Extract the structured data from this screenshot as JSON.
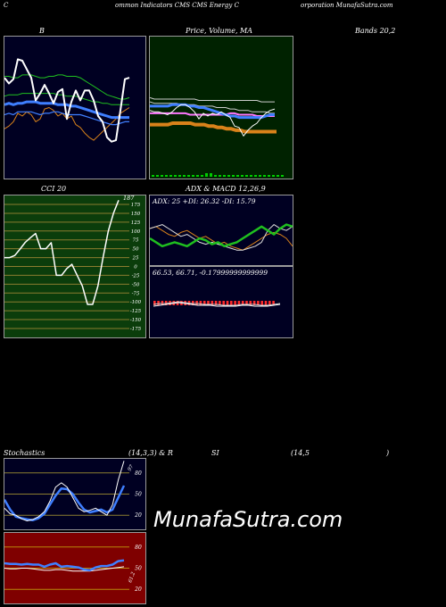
{
  "header": {
    "c": "C",
    "mid": "ommon  Indicators CMS CMS Energy C",
    "right": "orporation  MunafaSutra.com"
  },
  "panels": {
    "bollinger": {
      "label_left": "B",
      "label_mid": "Price,  Volume,  MA",
      "label_right": "Bands 20,2"
    },
    "cci": {
      "label": "CCI 20",
      "value_label": "187",
      "ticks": [
        "175",
        "150",
        "125",
        "100",
        "75",
        "50",
        "25",
        "0",
        "-25",
        "-50",
        "-75",
        "-100",
        "-125",
        "-150",
        "-175"
      ]
    },
    "adx": {
      "title": "ADX  & MACD 12,26,9",
      "readout": "ADX: 25 +DI: 26.32 -DI: 15.79"
    },
    "macd": {
      "readout": "66.53,  66.71,  -0.17999999999999"
    },
    "stochastics": {
      "label_left": "Stochastics",
      "label_mid": "(14,3,3) & R",
      "label_si": "SI",
      "label_right": "(14,5",
      "paren": ")",
      "ticks": [
        "80",
        "50",
        "20"
      ],
      "value_label": "97"
    },
    "rsi": {
      "ticks": [
        "80",
        "50",
        "20"
      ],
      "value_label": "61.2"
    }
  },
  "watermark": "MunafaSutra.com",
  "colors": {
    "price": "#ffffff",
    "ma_blue": "#3f7fff",
    "ma_green": "#1fbf1f",
    "ma_orange": "#d9821a",
    "pink": "#ff77ff",
    "cci_bg": "#0b3d0b",
    "rsi_bg": "#7f0000"
  },
  "chart_data": [
    {
      "type": "line",
      "name": "bollinger",
      "series": [
        {
          "values": [
            35,
            37,
            40,
            46,
            44,
            47,
            45,
            40,
            42,
            49,
            50,
            48,
            44,
            46,
            42,
            44,
            38,
            36,
            32,
            29,
            27,
            30,
            33,
            36,
            39,
            42,
            46,
            48,
            50
          ]
        },
        {
          "values": [
            58,
            59,
            59,
            59,
            60,
            60,
            60,
            60,
            60,
            60,
            60,
            60,
            59,
            59,
            58,
            58,
            58,
            57,
            56,
            55,
            54,
            54,
            53,
            53,
            52,
            52,
            52,
            52,
            52
          ]
        },
        {
          "values": [
            72,
            72,
            71,
            71,
            73,
            73,
            73,
            72,
            71,
            71,
            72,
            72,
            73,
            73,
            72,
            72,
            72,
            71,
            69,
            67,
            65,
            63,
            61,
            59,
            58,
            57,
            56,
            56,
            57
          ]
        },
        {
          "values": [
            45,
            46,
            45,
            47,
            47,
            47,
            47,
            46,
            45,
            46,
            46,
            47,
            47,
            46,
            45,
            45,
            45,
            45,
            44,
            43,
            42,
            41,
            40,
            39,
            38,
            38,
            39,
            40,
            40
          ]
        },
        {
          "values": [
            52,
            53,
            52,
            53,
            53,
            54,
            54,
            54,
            53,
            53,
            53,
            53,
            52,
            52,
            52,
            51,
            51,
            50,
            49,
            48,
            47,
            46,
            45,
            44,
            43,
            43,
            43,
            43,
            43
          ]
        },
        {
          "values": [
            71,
            67,
            70,
            84,
            83,
            77,
            71,
            55,
            60,
            66,
            60,
            53,
            61,
            63,
            42,
            54,
            62,
            55,
            62,
            62,
            55,
            44,
            40,
            29,
            26,
            27,
            48,
            70,
            71
          ]
        }
      ]
    },
    {
      "type": "line",
      "name": "price-volume",
      "series": [
        {
          "values": [
            48,
            47,
            47,
            46,
            45,
            47,
            50,
            52,
            52,
            50,
            47,
            42,
            46,
            44,
            46,
            45,
            47,
            45,
            43,
            37,
            36,
            30,
            34,
            37,
            39,
            43,
            46,
            48,
            49
          ]
        },
        {
          "values": [
            38,
            38,
            38,
            38,
            38,
            39,
            39,
            39,
            39,
            39,
            38,
            38,
            38,
            37,
            37,
            36,
            36,
            35,
            35,
            34,
            34,
            33,
            33,
            33,
            33,
            33,
            33,
            33,
            33
          ]
        },
        {
          "values": [
            51,
            51,
            51,
            51,
            51,
            52,
            52,
            52,
            52,
            51,
            51,
            50,
            50,
            49,
            48,
            47,
            46,
            45,
            44,
            44,
            43,
            43,
            43,
            43,
            43,
            43,
            44,
            45,
            45
          ]
        },
        {
          "values": [
            57,
            56,
            56,
            56,
            56,
            56,
            56,
            56,
            56,
            56,
            56,
            55,
            55,
            55,
            55,
            55,
            55,
            55,
            55,
            55,
            55,
            55,
            55,
            55,
            55,
            54,
            54,
            54,
            54
          ]
        },
        {
          "values": [
            54,
            53,
            53,
            53,
            53,
            53,
            53,
            52,
            52,
            52,
            52,
            51,
            51,
            51,
            51,
            50,
            50,
            50,
            49,
            49,
            48,
            48,
            48,
            47,
            47,
            47,
            47,
            46,
            46
          ]
        },
        {
          "values": [
            46,
            46,
            46,
            46,
            46,
            46,
            46,
            46,
            46,
            45,
            45,
            45,
            45,
            45,
            45,
            45,
            45,
            45,
            46,
            46,
            45,
            45,
            45,
            45,
            44,
            44,
            44,
            44,
            44
          ]
        }
      ]
    },
    {
      "type": "line",
      "name": "cci",
      "ylim": [
        -200,
        200
      ],
      "series": [
        {
          "values": [
            25,
            25,
            31,
            49,
            68,
            81,
            93,
            50,
            50,
            67,
            -25,
            -25,
            -6,
            6,
            -25,
            -55,
            -107,
            -107,
            -56,
            25,
            100,
            150,
            187
          ]
        }
      ]
    },
    {
      "type": "line",
      "name": "adx",
      "series": [
        {
          "values": [
            25,
            26,
            27,
            25,
            23,
            21,
            22,
            20,
            18,
            17,
            18,
            17,
            16,
            15,
            14,
            14,
            15,
            16,
            18,
            24,
            27,
            25,
            24,
            26
          ]
        },
        {
          "values": [
            20,
            18,
            16,
            17,
            18,
            17,
            16,
            18,
            20,
            19,
            17,
            18,
            16,
            17,
            18,
            20,
            22,
            24,
            26,
            24,
            22,
            25,
            27,
            26
          ]
        },
        {
          "values": [
            25,
            26,
            24,
            22,
            21,
            23,
            24,
            22,
            20,
            21,
            19,
            17,
            18,
            16,
            15,
            14,
            16,
            18,
            20,
            22,
            23,
            22,
            20,
            16
          ]
        }
      ]
    },
    {
      "type": "line",
      "name": "stochastics",
      "ylim": [
        0,
        100
      ],
      "series": [
        {
          "values": [
            30,
            22,
            20,
            15,
            12,
            14,
            18,
            25,
            40,
            60,
            66,
            60,
            45,
            30,
            25,
            27,
            30,
            25,
            20,
            35,
            70,
            97
          ]
        },
        {
          "values": [
            42,
            28,
            18,
            16,
            14,
            13,
            16,
            22,
            35,
            48,
            58,
            57,
            50,
            38,
            28,
            24,
            26,
            28,
            24,
            28,
            45,
            62
          ]
        }
      ]
    },
    {
      "type": "line",
      "name": "rsi",
      "ylim": [
        0,
        100
      ],
      "series": [
        {
          "values": [
            57,
            56,
            56,
            55,
            56,
            55,
            55,
            52,
            55,
            57,
            52,
            53,
            52,
            51,
            48,
            47,
            51,
            53,
            53,
            55,
            60,
            61
          ]
        },
        {
          "values": [
            50,
            49,
            49,
            50,
            50,
            49,
            48,
            47,
            47,
            48,
            48,
            47,
            46,
            46,
            46,
            46,
            47,
            48,
            49,
            50,
            51,
            52
          ]
        }
      ]
    }
  ]
}
